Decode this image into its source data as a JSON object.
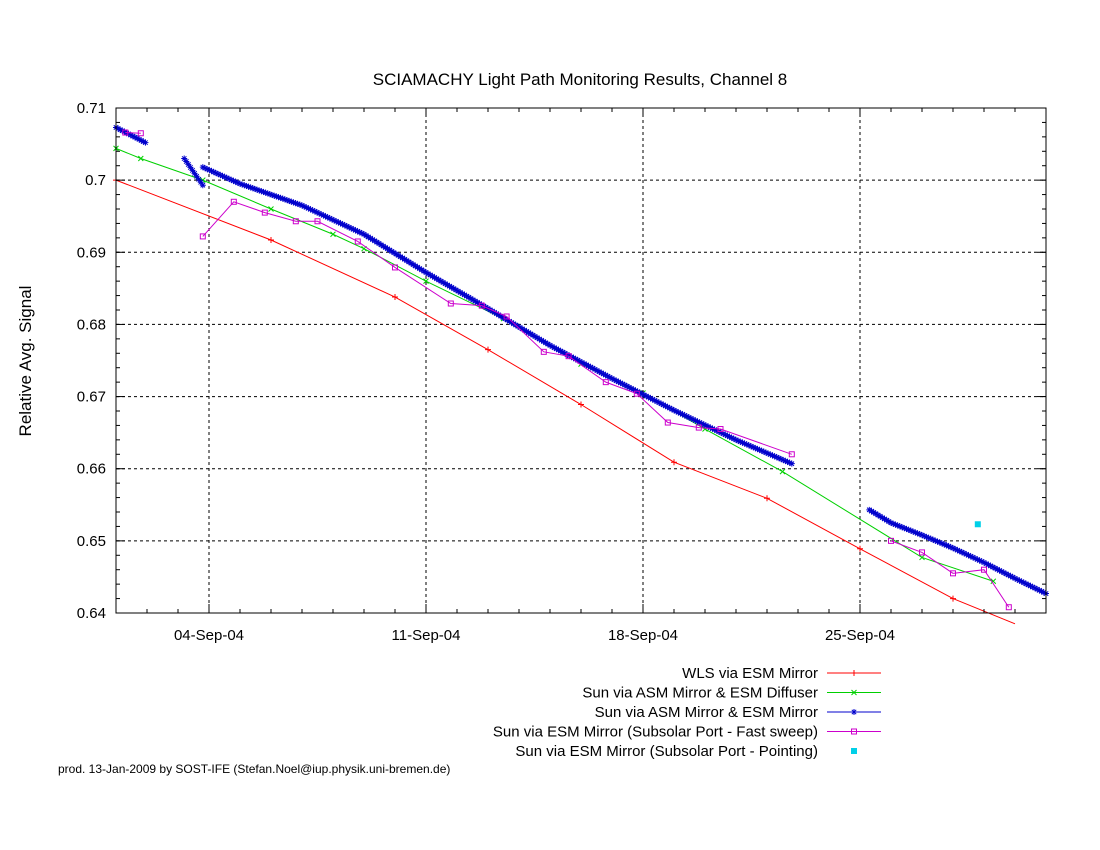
{
  "footer_text": "prod. 13-Jan-2009 by SOST-IFE (Stefan.Noel@iup.physik.uni-bremen.de)",
  "chart_data": {
    "type": "line",
    "title": "SCIAMACHY Light Path Monitoring Results, Channel 8",
    "xlabel": "",
    "ylabel": "Relative Avg. Signal",
    "xlim": [
      "2004-09-01",
      "2004-10-01"
    ],
    "ylim": [
      0.64,
      0.71
    ],
    "grid": true,
    "legend_position": "bottom-right, below plot",
    "xticks": [
      "04-Sep-04",
      "11-Sep-04",
      "18-Sep-04",
      "25-Sep-04"
    ],
    "xtick_dates": [
      "2004-09-04",
      "2004-09-11",
      "2004-09-18",
      "2004-09-25"
    ],
    "yticks": [
      "0.64",
      "0.65",
      "0.66",
      "0.67",
      "0.68",
      "0.69",
      "0.7",
      "0.71"
    ],
    "ytick_values": [
      0.64,
      0.65,
      0.66,
      0.67,
      0.68,
      0.69,
      0.7,
      0.71
    ],
    "series": [
      {
        "name": "WLS via ESM Mirror",
        "color": "#ff0000",
        "marker": "plus",
        "line": true,
        "x": [
          "2004-09-01",
          "2004-09-06",
          "2004-09-10",
          "2004-09-13",
          "2004-09-16",
          "2004-09-19",
          "2004-09-22",
          "2004-09-25",
          "2004-09-28",
          "2004-09-30"
        ],
        "y": [
          0.7,
          0.6917,
          0.6838,
          0.6765,
          0.6689,
          0.6609,
          0.6559,
          0.6489,
          0.642,
          0.6385
        ]
      },
      {
        "name": "Sun via ASM Mirror & ESM Diffuser",
        "color": "#00d000",
        "marker": "cross",
        "line": true,
        "x": [
          "2004-09-01",
          "2004-09-01.8",
          "2004-09-03.8",
          "2004-09-06",
          "2004-09-08",
          "2004-09-09",
          "2004-09-11",
          "2004-09-13.5",
          "2004-09-16",
          "2004-09-18",
          "2004-09-20",
          "2004-09-22.5",
          "2004-09-27",
          "2004-09-29.3"
        ],
        "y": [
          0.7044,
          0.703,
          0.7,
          0.696,
          0.6925,
          0.6905,
          0.686,
          0.6808,
          0.6745,
          0.6705,
          0.6655,
          0.6596,
          0.6477,
          0.6444
        ]
      },
      {
        "name": "Sun via ASM Mirror & ESM Mirror",
        "color": "#0000cc",
        "marker": "star",
        "line": true,
        "dense": true,
        "segments": [
          {
            "x": [
              "2004-09-01",
              "2004-09-01.95"
            ],
            "y": [
              0.7073,
              0.7052
            ]
          },
          {
            "x": [
              "2004-09-03.2",
              "2004-09-03.8"
            ],
            "y": [
              0.703,
              0.6993
            ]
          },
          {
            "x": [
              "2004-09-03.8",
              "2004-09-05",
              "2004-09-07",
              "2004-09-09",
              "2004-09-11",
              "2004-09-13",
              "2004-09-15",
              "2004-09-17",
              "2004-09-19",
              "2004-09-21",
              "2004-09-22.8"
            ],
            "y": [
              0.7018,
              0.6995,
              0.6965,
              0.6925,
              0.6872,
              0.6822,
              0.6771,
              0.6725,
              0.6681,
              0.664,
              0.6607
            ]
          },
          {
            "x": [
              "2004-09-25.3",
              "2004-09-26",
              "2004-09-27",
              "2004-09-28",
              "2004-09-29",
              "2004-09-30",
              "2004-10-01"
            ],
            "y": [
              0.6543,
              0.6525,
              0.6508,
              0.649,
              0.647,
              0.6448,
              0.6427
            ]
          }
        ]
      },
      {
        "name": "Sun via ESM Mirror (Subsolar Port - Fast sweep)",
        "color": "#cc00cc",
        "marker": "square",
        "line": true,
        "segments": [
          {
            "x": [
              "2004-09-01.3",
              "2004-09-01.8"
            ],
            "y": [
              0.7066,
              0.7065
            ]
          },
          {
            "x": [
              "2004-09-03.8",
              "2004-09-04.8",
              "2004-09-05.8",
              "2004-09-06.8",
              "2004-09-07.5",
              "2004-09-08.8",
              "2004-09-10.0",
              "2004-09-11.8",
              "2004-09-12.8",
              "2004-09-13.6",
              "2004-09-14.8",
              "2004-09-15.6",
              "2004-09-16.8",
              "2004-09-17.8",
              "2004-09-18.8",
              "2004-09-19.8",
              "2004-09-20.5",
              "2004-09-22.8"
            ],
            "y": [
              0.6922,
              0.697,
              0.6955,
              0.6943,
              0.6943,
              0.6915,
              0.6879,
              0.6829,
              0.6826,
              0.6811,
              0.6762,
              0.6756,
              0.672,
              0.6704,
              0.6664,
              0.6657,
              0.6655,
              0.662
            ]
          },
          {
            "x": [
              "2004-09-26",
              "2004-09-27",
              "2004-09-28",
              "2004-09-29",
              "2004-09-29.8"
            ],
            "y": [
              0.65,
              0.6484,
              0.6455,
              0.646,
              0.6408
            ]
          }
        ]
      },
      {
        "name": "Sun via ESM Mirror (Subsolar Port - Pointing)",
        "color": "#00d0e8",
        "marker": "filled-square",
        "line": false,
        "x": [
          "2004-09-28.8"
        ],
        "y": [
          0.6523
        ]
      }
    ]
  }
}
